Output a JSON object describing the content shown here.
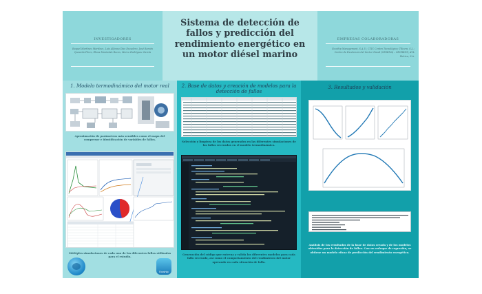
{
  "header": {
    "title_line1": "Sistema de detección de",
    "title_line2": "fallos y predicción del",
    "title_line3": "rendimiento energético en",
    "title_line4": "un motor diésel marino",
    "investigators_label": "INVESTIGADORES",
    "investigators_names": "Raquel Martínez Martínez, Luis Alfonso Díaz Escudero, José Ramón Quevedo Pérez, Elena Montañés Roces, Marco Rodríguez García",
    "companies_label": "EMPRESAS COLABORADORAS",
    "companies_names": "Ecoship Management, S.A.U.; CTIC Centro Tecnológico; TRcera, S.L.; Centro de Excelencia del Sector Naval (CESENA) – SECRENS; AVL Ibérica, S.A."
  },
  "sections": {
    "s1": {
      "title": "1.  Modelo termodinámico del motor real",
      "caption_top": "Aproximación de parámetros más sensibles como el mapa del compresor e identificación de variables de fallos.",
      "caption_bottom": "Múltiples simulaciones de cada uno de los diferentes fallos utilizados para el estudio."
    },
    "s2": {
      "title": "2.  Base de datos y creación de modelos para la detección de fallos",
      "caption_top": "Selección y limpieza de los datos generados en las diferentes simulaciones de los fallos recreados en el modelo termodinámico.",
      "caption_bottom": "Generación del código que entrena y valida los diferentes modelos para cada fallo recreado, así como el comportamiento del rendimiento del motor operando en cada situación de fallo."
    },
    "s3": {
      "title": "3.  Resultados y validación",
      "caption_bottom": "Análisis de los resultados de la base de datos creada y de los modelos obtenidos para la detección de fallos. Con un enfoque de regresión, se obtiene un modelo eficaz de predicción del rendimiento energético."
    }
  },
  "logos": {
    "left": "water-drop-logo",
    "right_text": "Ecoship"
  },
  "colors": {
    "header_side": "#8ed8db",
    "header_mid": "#b7e7e8",
    "col1": "#a2dfe2",
    "col2": "#25b9c2",
    "col3": "#12a0aa",
    "pie_red": "#e02a2a",
    "pie_blue": "#2a4fc8"
  }
}
